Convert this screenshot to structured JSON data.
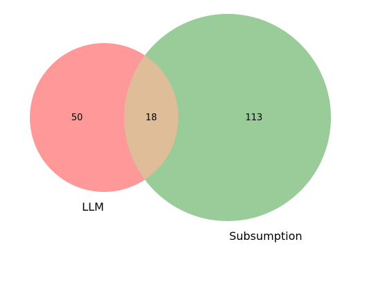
{
  "venn": {
    "sets": [
      {
        "key": "left",
        "label": "LLM",
        "color": "#ff9999"
      },
      {
        "key": "right",
        "label": "Subsumption",
        "color": "#99cc99"
      }
    ],
    "overlap_color": "#dfbd99",
    "counts": {
      "left_only": "50",
      "both": "18",
      "right_only": "113"
    }
  }
}
